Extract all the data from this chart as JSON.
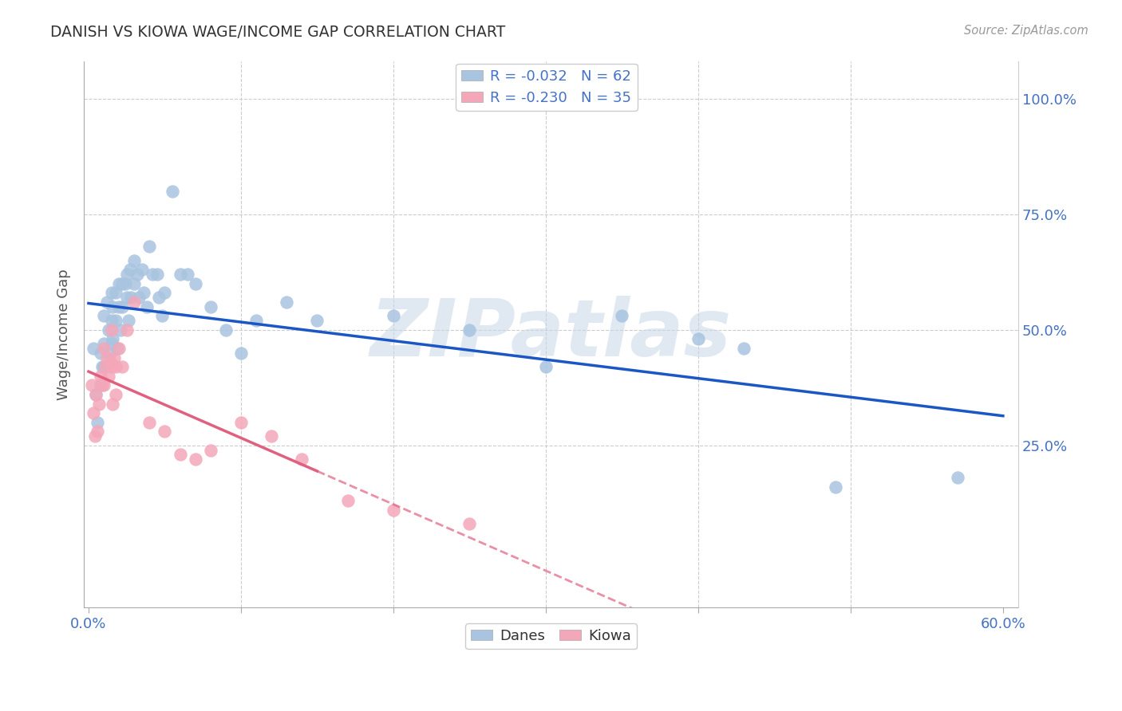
{
  "title": "DANISH VS KIOWA WAGE/INCOME GAP CORRELATION CHART",
  "source": "Source: ZipAtlas.com",
  "ylabel": "Wage/Income Gap",
  "xlim_min": -0.003,
  "xlim_max": 0.61,
  "ylim_min": -0.1,
  "ylim_max": 1.08,
  "ytick_values": [
    0.25,
    0.5,
    0.75,
    1.0
  ],
  "ytick_labels": [
    "25.0%",
    "50.0%",
    "75.0%",
    "100.0%"
  ],
  "xtick_values": [
    0.0,
    0.1,
    0.2,
    0.3,
    0.4,
    0.5,
    0.6
  ],
  "xtick_labels": [
    "0.0%",
    "",
    "",
    "",
    "",
    "",
    "60.0%"
  ],
  "danes_color": "#a8c4e0",
  "kiowa_color": "#f4a7b9",
  "danes_line_color": "#1a56c4",
  "kiowa_line_color": "#e06080",
  "R_danes": -0.032,
  "N_danes": 62,
  "R_kiowa": -0.23,
  "N_kiowa": 35,
  "watermark": "ZIPatlas",
  "watermark_color": "#c8d8e8",
  "danes_x": [
    0.003,
    0.005,
    0.006,
    0.008,
    0.008,
    0.009,
    0.01,
    0.01,
    0.01,
    0.012,
    0.013,
    0.014,
    0.015,
    0.015,
    0.015,
    0.016,
    0.016,
    0.018,
    0.018,
    0.019,
    0.02,
    0.02,
    0.021,
    0.022,
    0.022,
    0.024,
    0.025,
    0.025,
    0.026,
    0.027,
    0.028,
    0.03,
    0.03,
    0.032,
    0.033,
    0.035,
    0.036,
    0.038,
    0.04,
    0.042,
    0.045,
    0.046,
    0.048,
    0.05,
    0.055,
    0.06,
    0.065,
    0.07,
    0.08,
    0.09,
    0.1,
    0.11,
    0.13,
    0.15,
    0.2,
    0.25,
    0.3,
    0.35,
    0.4,
    0.43,
    0.49,
    0.57
  ],
  "danes_y": [
    0.46,
    0.36,
    0.3,
    0.45,
    0.38,
    0.42,
    0.53,
    0.47,
    0.42,
    0.56,
    0.5,
    0.45,
    0.58,
    0.52,
    0.47,
    0.55,
    0.48,
    0.58,
    0.52,
    0.46,
    0.6,
    0.55,
    0.5,
    0.6,
    0.55,
    0.6,
    0.62,
    0.57,
    0.52,
    0.63,
    0.57,
    0.65,
    0.6,
    0.62,
    0.57,
    0.63,
    0.58,
    0.55,
    0.68,
    0.62,
    0.62,
    0.57,
    0.53,
    0.58,
    0.8,
    0.62,
    0.62,
    0.6,
    0.55,
    0.5,
    0.45,
    0.52,
    0.56,
    0.52,
    0.53,
    0.5,
    0.42,
    0.53,
    0.48,
    0.46,
    0.16,
    0.18
  ],
  "kiowa_x": [
    0.002,
    0.003,
    0.004,
    0.005,
    0.006,
    0.007,
    0.008,
    0.009,
    0.01,
    0.01,
    0.011,
    0.012,
    0.013,
    0.014,
    0.015,
    0.015,
    0.016,
    0.017,
    0.018,
    0.018,
    0.02,
    0.022,
    0.025,
    0.03,
    0.04,
    0.05,
    0.06,
    0.07,
    0.08,
    0.1,
    0.12,
    0.14,
    0.17,
    0.2,
    0.25
  ],
  "kiowa_y": [
    0.38,
    0.32,
    0.27,
    0.36,
    0.28,
    0.34,
    0.4,
    0.38,
    0.46,
    0.38,
    0.42,
    0.44,
    0.4,
    0.43,
    0.5,
    0.42,
    0.34,
    0.44,
    0.42,
    0.36,
    0.46,
    0.42,
    0.5,
    0.56,
    0.3,
    0.28,
    0.23,
    0.22,
    0.24,
    0.3,
    0.27,
    0.22,
    0.13,
    0.11,
    0.08
  ],
  "background_color": "#ffffff",
  "grid_color": "#cccccc"
}
